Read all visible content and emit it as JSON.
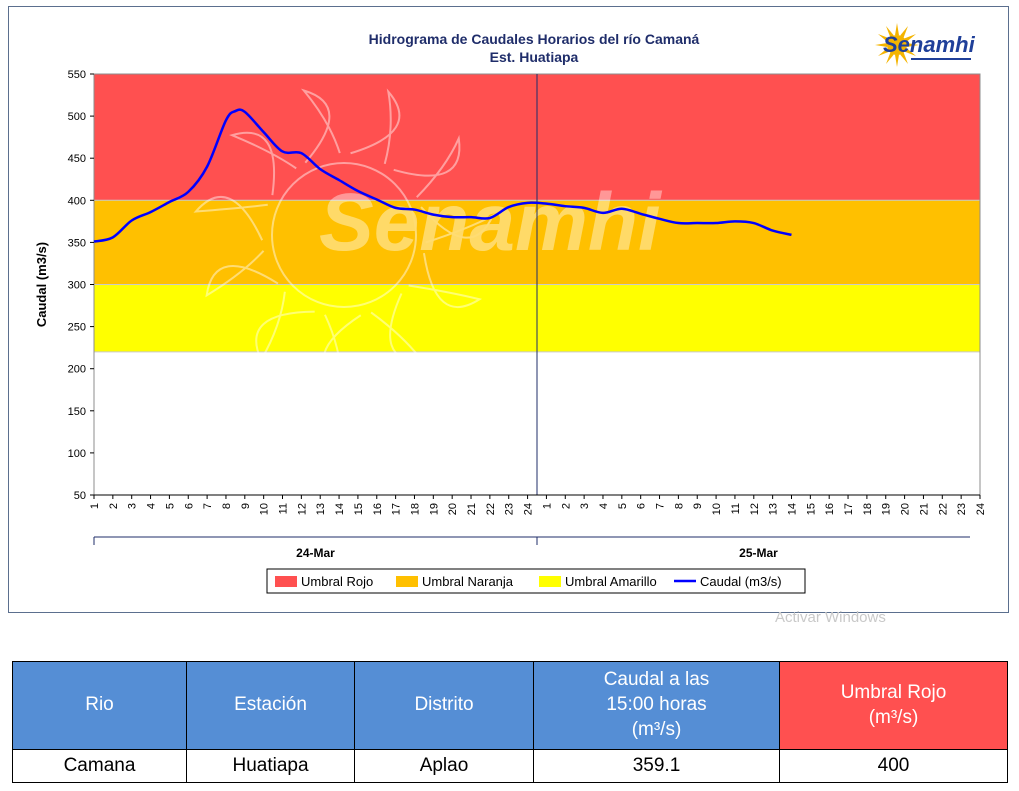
{
  "colors": {
    "umbral_rojo": "#ff5050",
    "umbral_naranja": "#ffc000",
    "umbral_amarillo": "#ffff00",
    "caudal_line": "#0000ff",
    "header_blue": "#558ed5",
    "header_red": "#ff5050"
  },
  "logo": {
    "text": "Senamhi",
    "icon": "sun-icon"
  },
  "chart_data": {
    "type": "line",
    "title": "Hidrograma de Caudales Horarios del río Camaná",
    "subtitle": "Est. Huatiapa",
    "ylabel": "Caudal  (m3/s)",
    "xlabel": "",
    "ylim": [
      50,
      550
    ],
    "yticks": [
      50,
      100,
      150,
      200,
      250,
      300,
      350,
      400,
      450,
      500,
      550
    ],
    "days": [
      "24-Mar",
      "25-Mar"
    ],
    "hour_labels": [
      "1",
      "2",
      "3",
      "4",
      "5",
      "6",
      "7",
      "8",
      "9",
      "10",
      "11",
      "12",
      "13",
      "14",
      "15",
      "16",
      "17",
      "18",
      "19",
      "20",
      "21",
      "22",
      "23",
      "24"
    ],
    "x_range_hours": [
      1,
      48
    ],
    "thresholds": [
      {
        "name": "Umbral Rojo",
        "from": 400,
        "to": 550,
        "color": "#ff5050"
      },
      {
        "name": "Umbral Naranja",
        "from": 300,
        "to": 400,
        "color": "#ffc000"
      },
      {
        "name": "Umbral Amarillo",
        "from": 220,
        "to": 300,
        "color": "#ffff00"
      }
    ],
    "series": [
      {
        "name": "Caudal (m3/s)",
        "color": "#0000ff",
        "x": [
          1,
          2,
          3,
          4,
          5,
          6,
          7,
          8,
          8.5,
          9,
          10,
          11,
          12,
          13,
          14,
          15,
          16,
          17,
          18,
          19,
          20,
          21,
          22,
          23,
          24,
          25,
          26,
          27,
          28,
          29,
          30,
          31,
          32,
          33,
          34,
          35,
          36,
          37,
          38
        ],
        "values": [
          351,
          356,
          376,
          386,
          398,
          410,
          440,
          495,
          506,
          505,
          481,
          458,
          456,
          437,
          424,
          411,
          401,
          391,
          389,
          383,
          380,
          380,
          379,
          392,
          397,
          396,
          393,
          391,
          385,
          390,
          384,
          378,
          373,
          373,
          373,
          375,
          373,
          364,
          359
        ]
      }
    ],
    "legend": [
      "Umbral Rojo",
      "Umbral Naranja",
      "Umbral Amarillo",
      "Caudal (m3/s)"
    ],
    "legend_position": "bottom",
    "watermark": "Senamhi"
  },
  "watermark_windows": "Activar Windows",
  "table": {
    "headers": {
      "rio": "Rio",
      "estacion": "Estación",
      "distrito": "Distrito",
      "caudal_line1": "Caudal a las",
      "caudal_line2": "15:00 horas",
      "caudal_line3": "(m³/s)",
      "umbral_line1": "Umbral Rojo",
      "umbral_line2": "(m³/s)"
    },
    "row": {
      "rio": "Camana",
      "estacion": "Huatiapa",
      "distrito": "Aplao",
      "caudal": "359.1",
      "umbral": "400"
    }
  }
}
